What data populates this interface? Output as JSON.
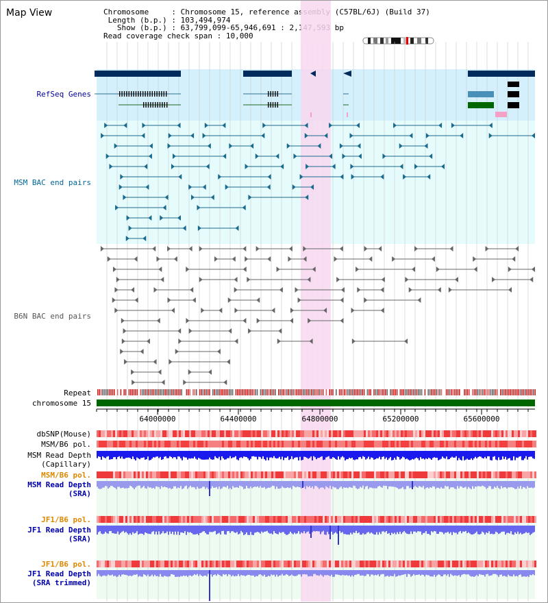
{
  "header": {
    "title": "Map View",
    "chromosome_key": "Chromosome     ",
    "chromosome_value": "Chromosome 15, reference assembly (C57BL/6J) (Build 37)",
    "length_key": "Length (b.p.) ",
    "length_value": "103,494,974",
    "show_key": " Show (b.p.) ",
    "show_value": "63,799,099-65,946,691 : 2,147,593 bp",
    "span_key": "Read coverage check span",
    "span_value": "10,000"
  },
  "tracks": {
    "refseq": "RefSeq Genes",
    "msm_bac": "MSM BAC end pairs",
    "b6n_bac": "B6N BAC end pairs",
    "repeat": "Repeat",
    "chrom": "chromosome 15",
    "dbsnp": "dbSNP(Mouse)",
    "msm_pol_1": "MSM/B6 pol.",
    "msm_depth_cap_1": "MSM Read Depth",
    "msm_depth_cap_2": "(Capillary)",
    "msm_pol_2": "MSM/B6 pol.",
    "msm_depth_sra_1": "MSM Read Depth",
    "msm_depth_sra_2": "(SRA)",
    "jf1_pol_1": "JF1/B6 pol.",
    "jf1_depth_1": "JF1 Read Depth",
    "jf1_depth_2": "(SRA)",
    "jf1_pol_2": "JF1/B6 pol.",
    "jf1_trim_1": "JF1 Read Depth",
    "jf1_trim_2": "(SRA trimmed)"
  },
  "axis": {
    "ticks": [
      "64000000",
      "64400000",
      "64800000",
      "65200000",
      "65600000"
    ]
  },
  "colors": {
    "refseq_label": "#000099",
    "msm_label": "#006699",
    "b6n_label": "#555555",
    "orange_label": "#dd8800",
    "blue_label": "#0000aa",
    "highlight": "#f8d8f0",
    "chrom_bar": "#006600"
  }
}
